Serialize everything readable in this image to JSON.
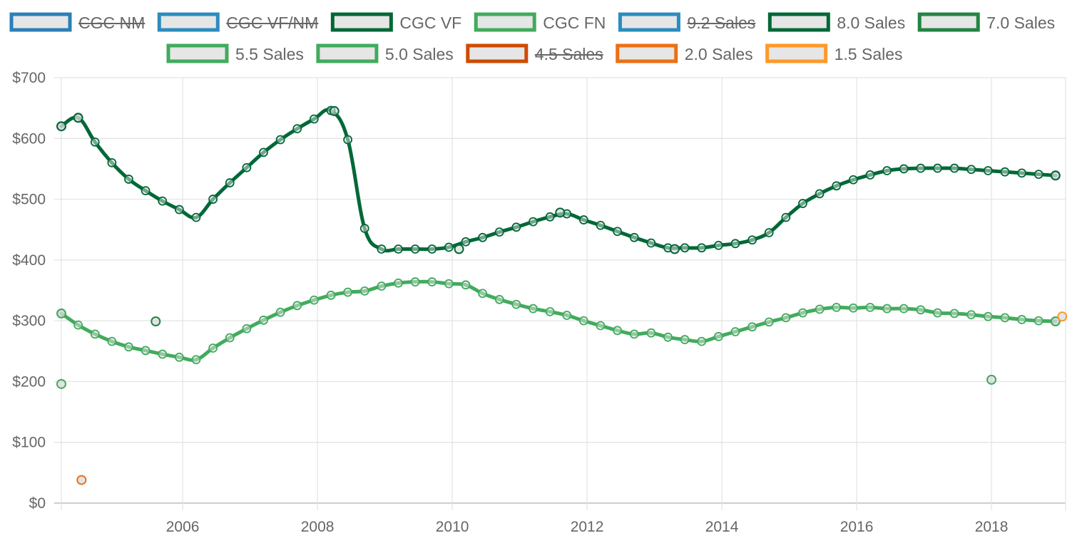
{
  "chart_data": {
    "type": "line",
    "title": "",
    "xlabel": "",
    "ylabel": "",
    "xlim": [
      2004.2,
      2019.1
    ],
    "ylim": [
      0,
      700
    ],
    "y_ticks": [
      {
        "value": 0,
        "label": "$0"
      },
      {
        "value": 100,
        "label": "$100"
      },
      {
        "value": 200,
        "label": "$200"
      },
      {
        "value": 300,
        "label": "$300"
      },
      {
        "value": 400,
        "label": "$400"
      },
      {
        "value": 500,
        "label": "$500"
      },
      {
        "value": 600,
        "label": "$600"
      },
      {
        "value": 700,
        "label": "$700"
      }
    ],
    "x_ticks": [
      {
        "value": 2006,
        "label": "2006"
      },
      {
        "value": 2008,
        "label": "2008"
      },
      {
        "value": 2010,
        "label": "2010"
      },
      {
        "value": 2012,
        "label": "2012"
      },
      {
        "value": 2014,
        "label": "2014"
      },
      {
        "value": 2016,
        "label": "2016"
      },
      {
        "value": 2018,
        "label": "2018"
      }
    ],
    "grid": true,
    "legend_position": "top",
    "legend": [
      {
        "label": "CGC NM",
        "color": "#2c7fb8",
        "hidden": true
      },
      {
        "label": "CGC VF/NM",
        "color": "#2b8cbe",
        "hidden": true
      },
      {
        "label": "CGC VF",
        "color": "#006837",
        "hidden": false
      },
      {
        "label": "CGC FN",
        "color": "#41ab5d",
        "hidden": false
      },
      {
        "label": "9.2 Sales",
        "color": "#2b8cbe",
        "hidden": true
      },
      {
        "label": "8.0 Sales",
        "color": "#006837",
        "hidden": false
      },
      {
        "label": "7.0 Sales",
        "color": "#238443",
        "hidden": false
      },
      {
        "label": "5.5 Sales",
        "color": "#41ab5d",
        "hidden": false
      },
      {
        "label": "5.0 Sales",
        "color": "#41ab5d",
        "hidden": false
      },
      {
        "label": "4.5 Sales",
        "color": "#cc4c02",
        "hidden": true
      },
      {
        "label": "2.0 Sales",
        "color": "#ec7014",
        "hidden": false
      },
      {
        "label": "1.5 Sales",
        "color": "#fe9929",
        "hidden": false
      }
    ],
    "series": [
      {
        "name": "CGC VF",
        "color": "#006837",
        "x": [
          2004.2,
          2004.45,
          2004.7,
          2004.95,
          2005.2,
          2005.45,
          2005.7,
          2005.95,
          2006.2,
          2006.45,
          2006.7,
          2006.95,
          2007.2,
          2007.45,
          2007.7,
          2007.95,
          2008.2,
          2008.45,
          2008.7,
          2008.95,
          2009.2,
          2009.45,
          2009.7,
          2009.95,
          2010.2,
          2010.45,
          2010.7,
          2010.95,
          2011.2,
          2011.45,
          2011.7,
          2011.95,
          2012.2,
          2012.45,
          2012.7,
          2012.95,
          2013.2,
          2013.45,
          2013.7,
          2013.95,
          2014.2,
          2014.45,
          2014.7,
          2014.95,
          2015.2,
          2015.45,
          2015.7,
          2015.95,
          2016.2,
          2016.45,
          2016.7,
          2016.95,
          2017.2,
          2017.45,
          2017.7,
          2017.95,
          2018.2,
          2018.45,
          2018.7,
          2018.95
        ],
        "y": [
          620,
          634,
          594,
          560,
          533,
          514,
          497,
          483,
          470,
          500,
          527,
          552,
          577,
          598,
          616,
          632,
          646,
          598,
          452,
          418,
          418,
          418,
          418,
          421,
          430,
          437,
          446,
          454,
          463,
          471,
          476,
          466,
          457,
          447,
          437,
          428,
          420,
          420,
          420,
          424,
          427,
          433,
          445,
          470,
          493,
          509,
          522,
          532,
          540,
          547,
          550,
          551,
          551,
          551,
          549,
          547,
          545,
          543,
          541,
          539
        ]
      },
      {
        "name": "CGC FN",
        "color": "#41ab5d",
        "x": [
          2004.2,
          2004.45,
          2004.7,
          2004.95,
          2005.2,
          2005.45,
          2005.7,
          2005.95,
          2006.2,
          2006.45,
          2006.7,
          2006.95,
          2007.2,
          2007.45,
          2007.7,
          2007.95,
          2008.2,
          2008.45,
          2008.7,
          2008.95,
          2009.2,
          2009.45,
          2009.7,
          2009.95,
          2010.2,
          2010.45,
          2010.7,
          2010.95,
          2011.2,
          2011.45,
          2011.7,
          2011.95,
          2012.2,
          2012.45,
          2012.7,
          2012.95,
          2013.2,
          2013.45,
          2013.7,
          2013.95,
          2014.2,
          2014.45,
          2014.7,
          2014.95,
          2015.2,
          2015.45,
          2015.7,
          2015.95,
          2016.2,
          2016.45,
          2016.7,
          2016.95,
          2017.2,
          2017.45,
          2017.7,
          2017.95,
          2018.2,
          2018.45,
          2018.7,
          2018.95
        ],
        "y": [
          312,
          293,
          278,
          266,
          257,
          251,
          245,
          240,
          236,
          255,
          272,
          287,
          301,
          314,
          325,
          334,
          342,
          347,
          349,
          357,
          362,
          364,
          364,
          361,
          359,
          345,
          335,
          327,
          320,
          315,
          309,
          300,
          292,
          284,
          278,
          280,
          273,
          269,
          266,
          274,
          282,
          290,
          298,
          305,
          313,
          319,
          322,
          321,
          322,
          320,
          320,
          318,
          313,
          312,
          310,
          307,
          305,
          302,
          300,
          299
        ]
      }
    ],
    "sales_points": [
      {
        "name": "8.0 Sales",
        "color": "#006837",
        "points": [
          [
            2004.2,
            620
          ],
          [
            2004.45,
            634
          ],
          [
            2008.25,
            645
          ],
          [
            2010.1,
            418
          ],
          [
            2011.6,
            478
          ],
          [
            2013.3,
            418
          ],
          [
            2018.95,
            539
          ]
        ]
      },
      {
        "name": "7.0 Sales",
        "color": "#238443",
        "points": [
          [
            2005.6,
            299
          ]
        ]
      },
      {
        "name": "5.5 Sales",
        "color": "#41ab5d",
        "points": [
          [
            2004.2,
            312
          ],
          [
            2004.2,
            196
          ],
          [
            2018.0,
            203
          ],
          [
            2018.95,
            299
          ]
        ]
      },
      {
        "name": "2.0 Sales",
        "color": "#ec7014",
        "points": [
          [
            2004.5,
            38
          ]
        ]
      },
      {
        "name": "1.5 Sales",
        "color": "#fe9929",
        "points": [
          [
            2019.05,
            307
          ]
        ]
      }
    ]
  }
}
